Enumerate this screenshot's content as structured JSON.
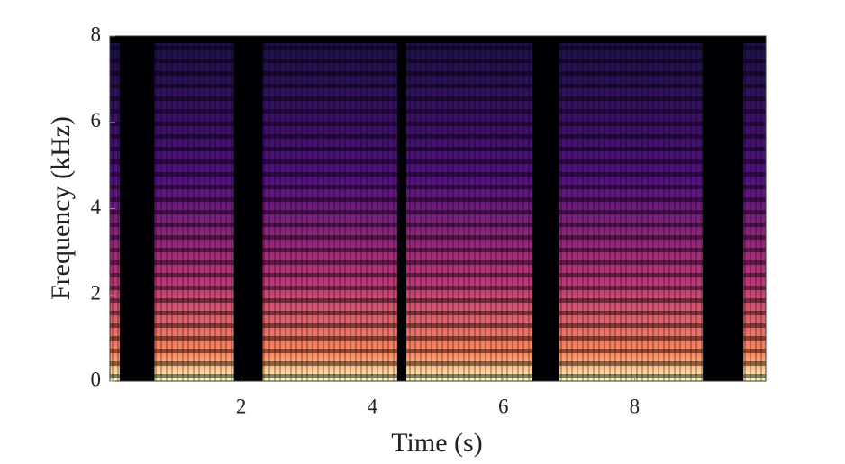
{
  "chart_data": {
    "type": "spectrogram",
    "x_label": "Time (s)",
    "y_label": "Frequency (kHz)",
    "xlim": [
      0,
      10
    ],
    "xticks": [
      2,
      4,
      6,
      8
    ],
    "ylim": [
      0,
      8
    ],
    "yticks": [
      0,
      2,
      4,
      6,
      8
    ],
    "colormap": "magma",
    "active_segments": [
      {
        "start": 0.0,
        "end": 0.15
      },
      {
        "start": 0.68,
        "end": 1.89
      },
      {
        "start": 2.33,
        "end": 4.38
      },
      {
        "start": 4.52,
        "end": 6.44
      },
      {
        "start": 6.85,
        "end": 9.04
      },
      {
        "start": 9.66,
        "end": 10.0
      }
    ]
  }
}
